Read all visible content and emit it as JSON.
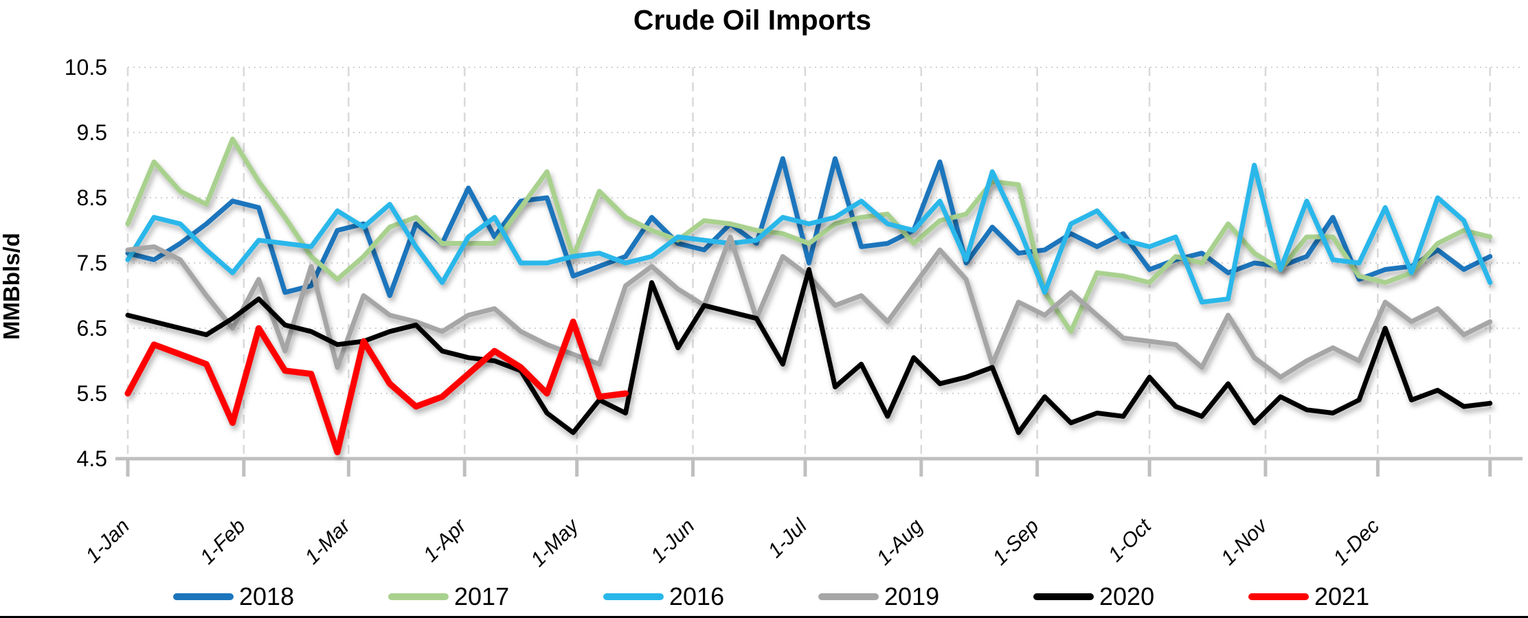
{
  "chart_data": {
    "type": "line",
    "title": "Crude Oil Imports",
    "ylabel": "MMBbls/d",
    "xlabel": "",
    "ylim": [
      4.5,
      10.5
    ],
    "yticks": [
      "10.5",
      "9.5",
      "8.5",
      "7.5",
      "6.5",
      "5.5",
      "4.5"
    ],
    "xticklabels": [
      "1-Jan",
      "1-Feb",
      "1-Mar",
      "1-Apr",
      "1-May",
      "1-Jun",
      "1-Jul",
      "1-Aug",
      "1-Sep",
      "1-Oct",
      "1-Nov",
      "1-Dec"
    ],
    "x_unit": "weekly",
    "grid": true,
    "legend_position": "bottom",
    "series": [
      {
        "name": "2018",
        "color": "#1B75BC",
        "values": [
          7.65,
          7.55,
          7.8,
          8.1,
          8.45,
          8.35,
          7.05,
          7.15,
          8.0,
          8.1,
          7.0,
          8.1,
          7.8,
          8.65,
          7.9,
          8.45,
          8.5,
          7.3,
          7.45,
          7.6,
          8.2,
          7.8,
          7.7,
          8.1,
          7.8,
          9.1,
          7.5,
          9.1,
          7.75,
          7.8,
          8.0,
          9.05,
          7.5,
          8.05,
          7.65,
          7.7,
          7.95,
          7.75,
          7.95,
          7.4,
          7.55,
          7.65,
          7.35,
          7.5,
          7.45,
          7.6,
          8.2,
          7.25,
          7.4,
          7.45,
          7.7,
          7.4,
          7.6
        ]
      },
      {
        "name": "2017",
        "color": "#A9D18E",
        "values": [
          8.1,
          9.05,
          8.6,
          8.4,
          9.4,
          8.75,
          8.2,
          7.6,
          7.25,
          7.6,
          8.05,
          8.2,
          7.8,
          7.8,
          7.8,
          8.35,
          8.9,
          7.6,
          8.6,
          8.2,
          8.0,
          7.85,
          8.15,
          8.1,
          8.0,
          7.95,
          7.8,
          8.1,
          8.2,
          8.25,
          7.8,
          8.15,
          8.25,
          8.75,
          8.7,
          7.05,
          6.45,
          7.35,
          7.3,
          7.2,
          7.6,
          7.5,
          8.1,
          7.65,
          7.4,
          7.9,
          7.9,
          7.3,
          7.2,
          7.35,
          7.8,
          8.0,
          7.9
        ]
      },
      {
        "name": "2016",
        "color": "#29B7EA",
        "values": [
          7.55,
          8.2,
          8.1,
          7.7,
          7.35,
          7.85,
          7.8,
          7.75,
          8.3,
          8.05,
          8.4,
          7.75,
          7.2,
          7.9,
          8.2,
          7.5,
          7.5,
          7.6,
          7.65,
          7.5,
          7.6,
          7.9,
          7.85,
          7.8,
          7.85,
          8.2,
          8.1,
          8.2,
          8.45,
          8.1,
          8.0,
          8.45,
          7.55,
          8.9,
          8.05,
          7.05,
          8.1,
          8.3,
          7.85,
          7.75,
          7.9,
          6.9,
          6.95,
          9.0,
          7.4,
          8.45,
          7.55,
          7.5,
          8.35,
          7.35,
          8.5,
          8.15,
          7.2
        ]
      },
      {
        "name": "2019",
        "color": "#A6A6A6",
        "values": [
          7.7,
          7.75,
          7.55,
          7.0,
          6.5,
          7.25,
          6.15,
          7.45,
          5.9,
          7.0,
          6.7,
          6.6,
          6.45,
          6.7,
          6.8,
          6.45,
          6.25,
          6.1,
          5.95,
          7.15,
          7.45,
          7.1,
          6.85,
          7.9,
          6.65,
          7.6,
          7.3,
          6.85,
          7.0,
          6.6,
          7.15,
          7.7,
          7.25,
          5.95,
          6.9,
          6.7,
          7.05,
          6.7,
          6.35,
          6.3,
          6.25,
          5.9,
          6.7,
          6.05,
          5.75,
          6.0,
          6.2,
          6.0,
          6.9,
          6.6,
          6.8,
          6.4,
          6.6
        ]
      },
      {
        "name": "2020",
        "color": "#000000",
        "values": [
          6.7,
          6.6,
          6.5,
          6.4,
          6.65,
          6.95,
          6.55,
          6.45,
          6.25,
          6.3,
          6.45,
          6.55,
          6.15,
          6.05,
          6.0,
          5.85,
          5.2,
          4.9,
          5.4,
          5.2,
          7.2,
          6.2,
          6.85,
          6.75,
          6.65,
          5.95,
          7.4,
          5.6,
          5.95,
          5.15,
          6.05,
          5.65,
          5.75,
          5.9,
          4.9,
          5.45,
          5.05,
          5.2,
          5.15,
          5.75,
          5.3,
          5.15,
          5.65,
          5.05,
          5.45,
          5.25,
          5.2,
          5.4,
          6.5,
          5.4,
          5.55,
          5.3,
          5.35
        ]
      },
      {
        "name": "2021",
        "color": "#FF0000",
        "values": [
          5.5,
          6.25,
          6.1,
          5.95,
          5.05,
          6.5,
          5.85,
          5.8,
          4.6,
          6.3,
          5.65,
          5.3,
          5.45,
          5.8,
          6.15,
          5.9,
          5.5,
          6.6,
          5.45,
          5.5
        ]
      }
    ]
  }
}
